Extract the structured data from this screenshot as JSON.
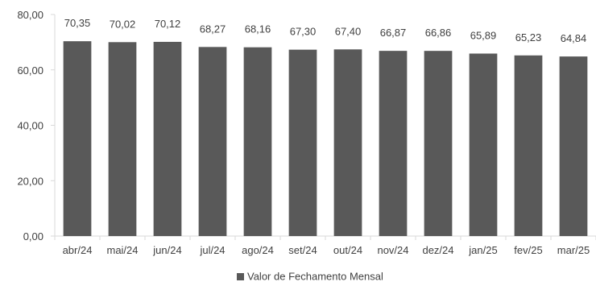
{
  "chart_data": {
    "type": "bar",
    "categories": [
      "abr/24",
      "mai/24",
      "jun/24",
      "jul/24",
      "ago/24",
      "set/24",
      "out/24",
      "nov/24",
      "dez/24",
      "jan/25",
      "fev/25",
      "mar/25"
    ],
    "series": [
      {
        "name": "Valor de Fechamento Mensal",
        "values": [
          70.35,
          70.02,
          70.12,
          68.27,
          68.16,
          67.3,
          67.4,
          66.87,
          66.86,
          65.89,
          65.23,
          64.84
        ],
        "labels": [
          "70,35",
          "70,02",
          "70,12",
          "68,27",
          "68,16",
          "67,30",
          "67,40",
          "66,87",
          "66,86",
          "65,89",
          "65,23",
          "64,84"
        ],
        "color": "#595959"
      }
    ],
    "ylim": [
      0,
      80
    ],
    "yticks": [
      0,
      20,
      40,
      60,
      80
    ],
    "ytick_labels": [
      "0,00",
      "20,00",
      "40,00",
      "60,00",
      "80,00"
    ],
    "grid": false,
    "legend_position": "bottom",
    "title": "",
    "xlabel": "",
    "ylabel": ""
  }
}
